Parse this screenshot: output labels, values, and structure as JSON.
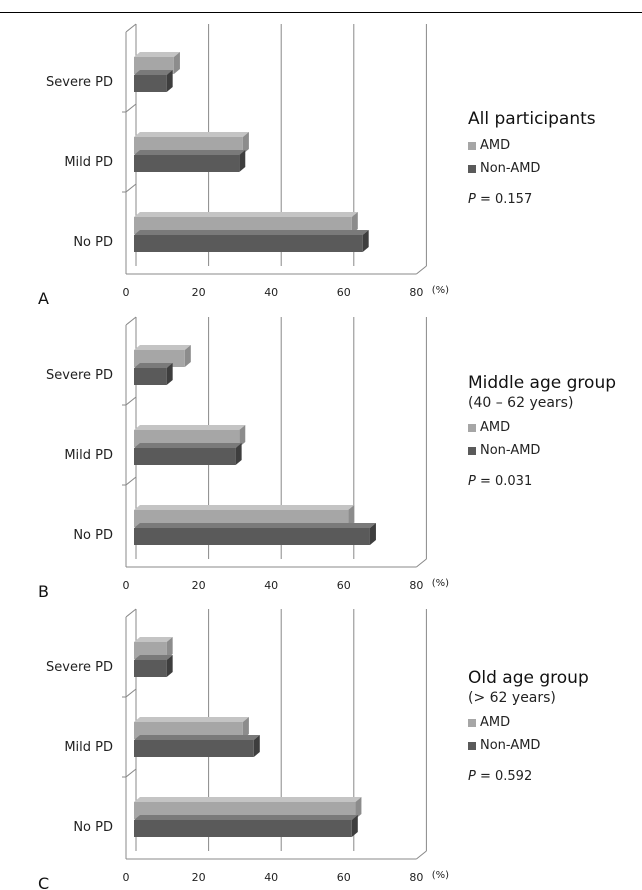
{
  "colors": {
    "amd": "#a6a6a6",
    "amd_top": "#c4c4c4",
    "amd_side": "#8c8c8c",
    "non_amd": "#5a5a5a",
    "non_amd_top": "#7a7a7a",
    "non_amd_side": "#3e3e3e",
    "grid": "#888888"
  },
  "chart_data": [
    {
      "type": "bar",
      "orientation": "horizontal",
      "panel_label": "A",
      "title": "All participants",
      "subtitle": "",
      "categories": [
        "Severe PD",
        "Mild PD",
        "No PD"
      ],
      "series": [
        {
          "name": "AMD",
          "values": [
            11,
            30,
            60
          ]
        },
        {
          "name": "Non-AMD",
          "values": [
            9,
            29,
            63
          ]
        }
      ],
      "x_ticks": [
        "0",
        "20",
        "40",
        "60",
        "80"
      ],
      "x_unit": "(%)",
      "xlim": [
        0,
        80
      ],
      "p_prefix": "P",
      "p_text": " = 0.157"
    },
    {
      "type": "bar",
      "orientation": "horizontal",
      "panel_label": "B",
      "title": "Middle age group",
      "subtitle": "(40 – 62 years)",
      "categories": [
        "Severe PD",
        "Mild PD",
        "No PD"
      ],
      "series": [
        {
          "name": "AMD",
          "values": [
            14,
            29,
            59
          ]
        },
        {
          "name": "Non-AMD",
          "values": [
            9,
            28,
            65
          ]
        }
      ],
      "x_ticks": [
        "0",
        "20",
        "40",
        "60",
        "80"
      ],
      "x_unit": "(%)",
      "xlim": [
        0,
        80
      ],
      "p_prefix": "P",
      "p_text": " = 0.031"
    },
    {
      "type": "bar",
      "orientation": "horizontal",
      "panel_label": "C",
      "title": "Old age group",
      "subtitle": "(> 62 years)",
      "categories": [
        "Severe PD",
        "Mild PD",
        "No PD"
      ],
      "series": [
        {
          "name": "AMD",
          "values": [
            9,
            30,
            61
          ]
        },
        {
          "name": "Non-AMD",
          "values": [
            9,
            33,
            60
          ]
        }
      ],
      "x_ticks": [
        "0",
        "20",
        "40",
        "60",
        "80"
      ],
      "x_unit": "(%)",
      "xlim": [
        0,
        80
      ],
      "p_prefix": "P",
      "p_text": " = 0.592"
    }
  ]
}
